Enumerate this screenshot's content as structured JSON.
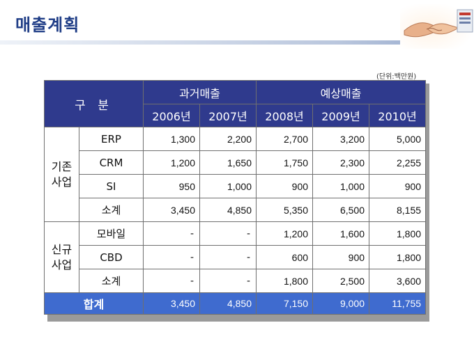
{
  "page": {
    "title": "매출계획",
    "unit": "(단위:백만원)"
  },
  "table": {
    "header": {
      "category": "구 분",
      "past_group": "과거매출",
      "forecast_group": "예상매출",
      "years": [
        "2006년",
        "2007년",
        "2008년",
        "2009년",
        "2010년"
      ]
    },
    "groups": [
      {
        "name": "기존\n사업",
        "rows": [
          {
            "item": "ERP",
            "values": [
              "1,300",
              "2,200",
              "2,700",
              "3,200",
              "5,000"
            ]
          },
          {
            "item": "CRM",
            "values": [
              "1,200",
              "1,650",
              "1,750",
              "2,300",
              "2,255"
            ]
          },
          {
            "item": "SI",
            "values": [
              "950",
              "1,000",
              "900",
              "1,000",
              "900"
            ]
          },
          {
            "item": "소계",
            "values": [
              "3,450",
              "4,850",
              "5,350",
              "6,500",
              "8,155"
            ]
          }
        ]
      },
      {
        "name": "신규\n사업",
        "rows": [
          {
            "item": "모바일",
            "values": [
              "-",
              "-",
              "1,200",
              "1,600",
              "1,800"
            ]
          },
          {
            "item": "CBD",
            "values": [
              "-",
              "-",
              "600",
              "900",
              "1,800"
            ]
          },
          {
            "item": "소계",
            "values": [
              "-",
              "-",
              "1,800",
              "2,500",
              "3,600"
            ]
          }
        ]
      }
    ],
    "total": {
      "label": "합계",
      "values": [
        "3,450",
        "4,850",
        "7,150",
        "9,000",
        "11,755"
      ]
    }
  },
  "colors": {
    "header_bg": "#2f3a8d",
    "total_bg": "#3f6bcf",
    "title": "#1f3d86"
  },
  "icons": {
    "corner": "handshake-icon"
  }
}
